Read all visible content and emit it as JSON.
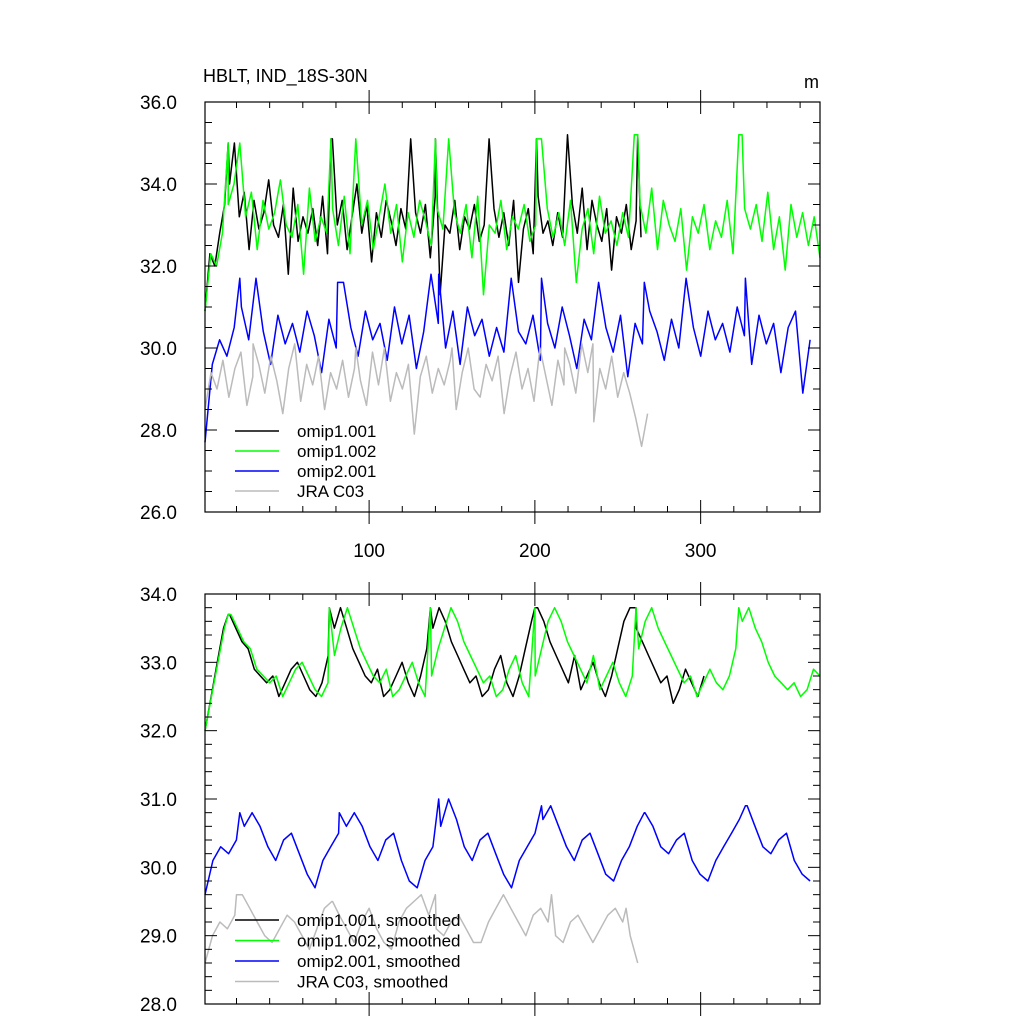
{
  "chart_data": [
    {
      "type": "line",
      "title": "HBLT, IND_18S-30N",
      "units": "m",
      "xlim": [
        1,
        372
      ],
      "ylim": [
        26,
        36
      ],
      "xticks": [
        100,
        200,
        300
      ],
      "xtick_labels": [
        "100",
        "200",
        "300"
      ],
      "yticks": [
        26,
        28,
        30,
        32,
        34,
        36
      ],
      "ytick_labels": [
        "26.0",
        "28.0",
        "30.0",
        "32.0",
        "34.0",
        "36.0"
      ],
      "grid": false,
      "legend_position": "bottom-left",
      "series": [
        {
          "name": "omip1.001",
          "color": "#000000",
          "x_range": [
            1,
            264
          ],
          "annual_peaks": [
            [
              15,
              35.0
            ],
            [
              77,
              35.1
            ],
            [
              140,
              35.1
            ],
            [
              201,
              35.1
            ],
            [
              262,
              35.2
            ]
          ],
          "values": [
            30.9,
            32.3,
            32.0,
            32.8,
            33.5,
            34.0,
            35.0,
            33.2,
            33.8,
            32.4,
            33.6,
            32.9,
            33.3,
            34.1,
            33.0,
            32.7,
            33.5,
            31.8,
            33.9,
            32.6,
            33.2,
            32.8,
            33.4,
            32.5,
            33.7,
            32.3,
            35.1,
            33.0,
            33.6,
            32.4,
            33.2,
            34.0,
            32.8,
            33.5,
            32.1,
            33.3,
            32.7,
            33.6,
            33.1,
            32.5,
            33.4,
            32.9,
            35.1,
            33.3,
            32.8,
            33.5,
            32.2,
            33.7,
            31.3,
            33.0,
            32.8,
            33.6,
            32.4,
            33.2,
            32.9,
            33.5,
            32.6,
            33.0,
            35.1,
            33.4,
            32.7,
            33.3,
            32.5,
            33.6,
            31.6,
            32.9,
            33.4,
            32.3,
            33.7,
            32.8,
            33.1,
            32.5,
            33.3,
            32.7,
            35.2,
            33.5,
            32.8,
            33.9,
            32.4,
            33.6,
            33.0,
            32.6,
            33.4,
            31.9,
            33.2,
            32.8,
            33.5,
            32.4,
            33.1,
            32.7
          ]
        },
        {
          "name": "omip1.002",
          "color": "#00ff00",
          "x_range": [
            1,
            372
          ],
          "annual_peaks": [
            [
              15,
              35.0
            ],
            [
              77,
              35.1
            ],
            [
              140,
              35.1
            ],
            [
              201,
              35.1
            ],
            [
              262,
              35.2
            ],
            [
              325,
              35.2
            ]
          ],
          "values": [
            30.9,
            32.3,
            32.0,
            32.8,
            33.5,
            34.0,
            35.0,
            33.2,
            33.8,
            32.4,
            33.6,
            32.9,
            33.3,
            34.1,
            33.0,
            32.7,
            33.5,
            31.8,
            33.9,
            32.6,
            33.2,
            32.8,
            33.4,
            32.5,
            33.7,
            32.3,
            35.1,
            33.0,
            33.6,
            32.4,
            33.2,
            34.0,
            32.8,
            33.5,
            32.1,
            33.3,
            32.7,
            33.6,
            33.1,
            32.5,
            33.4,
            32.9,
            35.1,
            33.3,
            32.8,
            33.5,
            32.2,
            33.7,
            31.3,
            33.0,
            32.8,
            33.6,
            32.4,
            33.2,
            32.9,
            33.5,
            32.6,
            33.0,
            35.1,
            33.4,
            32.7,
            33.3,
            32.5,
            33.6,
            31.6,
            32.9,
            33.4,
            32.3,
            33.7,
            32.8,
            33.1,
            32.5,
            33.3,
            32.7,
            35.2,
            33.5,
            32.8,
            33.9,
            32.4,
            33.6,
            33.0,
            32.6,
            33.4,
            31.9,
            33.2,
            32.8,
            33.5,
            32.4,
            33.1,
            32.7,
            33.6,
            32.3,
            35.2,
            33.4,
            32.9,
            33.5,
            32.6,
            33.8,
            32.4,
            33.2,
            31.9,
            33.5,
            32.7,
            33.3,
            32.5,
            33.2,
            32.2
          ]
        },
        {
          "name": "omip2.001",
          "color": "#0000ff",
          "x_range": [
            1,
            366
          ],
          "annual_peaks": [
            [
              22,
              31.7
            ],
            [
              81,
              31.6
            ],
            [
              142,
              31.8
            ],
            [
              204,
              31.7
            ],
            [
              266,
              31.6
            ],
            [
              327,
              31.7
            ]
          ],
          "values": [
            27.7,
            29.6,
            30.2,
            29.8,
            30.5,
            31.0,
            30.2,
            31.7,
            30.4,
            29.6,
            30.8,
            30.1,
            30.6,
            29.9,
            30.9,
            30.3,
            29.4,
            30.7,
            30.0,
            31.6,
            30.5,
            29.8,
            30.9,
            30.2,
            30.6,
            29.7,
            31.0,
            30.1,
            30.8,
            29.5,
            30.4,
            31.8,
            30.6,
            30.0,
            30.9,
            29.6,
            31.0,
            30.3,
            30.7,
            29.8,
            30.5,
            29.9,
            31.7,
            30.4,
            30.1,
            30.8,
            29.7,
            30.6,
            30.0,
            31.0,
            30.3,
            29.5,
            30.7,
            30.2,
            31.6,
            30.5,
            29.9,
            30.8,
            29.3,
            30.6,
            30.1,
            30.9,
            30.4,
            29.7,
            30.7,
            30.0,
            31.7,
            30.5,
            29.8,
            30.9,
            30.2,
            30.6,
            29.9,
            31.0,
            30.3,
            29.6,
            30.8,
            30.1,
            30.6,
            29.4,
            30.5,
            30.9,
            28.9,
            30.2
          ]
        },
        {
          "name": "JRA C03",
          "color": "#bbbbbb",
          "x_range": [
            1,
            268
          ],
          "annual_peaks": [
            [
              30,
              30.1
            ],
            [
              92,
              30.0
            ],
            [
              150,
              30.0
            ],
            [
              218,
              30.0
            ],
            [
              235,
              30.1
            ]
          ],
          "values": [
            28.5,
            29.4,
            29.0,
            29.7,
            28.8,
            29.5,
            29.9,
            28.6,
            29.3,
            29.6,
            28.9,
            29.8,
            29.2,
            28.4,
            29.5,
            30.1,
            28.7,
            29.6,
            29.1,
            29.8,
            28.5,
            29.4,
            29.0,
            29.7,
            28.8,
            29.5,
            29.2,
            28.6,
            29.9,
            29.1,
            30.0,
            28.7,
            29.4,
            29.0,
            29.6,
            27.9,
            29.3,
            29.8,
            28.9,
            29.5,
            29.1,
            29.7,
            28.5,
            29.4,
            30.0,
            29.0,
            28.8,
            29.6,
            29.2,
            29.8,
            28.4,
            29.3,
            29.9,
            29.0,
            29.5,
            28.7,
            30.0,
            29.3,
            28.6,
            29.7,
            29.1,
            29.6,
            28.9,
            30.1,
            29.4,
            28.2,
            29.5,
            29.0,
            29.8,
            28.8,
            29.4,
            28.9,
            28.3,
            27.6,
            28.4
          ]
        }
      ]
    },
    {
      "type": "line",
      "xlim": [
        1,
        372
      ],
      "ylim": [
        28,
        34
      ],
      "yticks": [
        28,
        29,
        30,
        31,
        32,
        33,
        34
      ],
      "ytick_labels": [
        "28.0",
        "29.0",
        "30.0",
        "31.0",
        "32.0",
        "33.0",
        "34.0"
      ],
      "grid": false,
      "legend_position": "bottom-left",
      "series": [
        {
          "name": "omip1.001, smoothed",
          "color": "#000000",
          "x_range": [
            1,
            302
          ],
          "annual_peaks": [
            [
              15,
              33.7
            ],
            [
              76,
              33.8
            ],
            [
              137,
              33.8
            ],
            [
              200,
              33.8
            ],
            [
              261,
              33.8
            ]
          ],
          "values": [
            32.0,
            32.5,
            33.0,
            33.5,
            33.7,
            33.5,
            33.3,
            33.2,
            32.9,
            32.8,
            32.7,
            32.8,
            32.5,
            32.7,
            32.9,
            33.0,
            32.8,
            32.6,
            32.5,
            32.7,
            33.1,
            33.5,
            33.8,
            33.5,
            33.2,
            33.0,
            32.8,
            32.7,
            32.9,
            32.5,
            32.6,
            32.8,
            33.0,
            32.7,
            32.5,
            32.8,
            33.2,
            33.5,
            33.8,
            33.6,
            33.3,
            33.1,
            32.9,
            32.7,
            32.8,
            32.5,
            32.6,
            32.9,
            33.1,
            32.7,
            32.5,
            32.8,
            33.2,
            33.6,
            33.8,
            33.6,
            33.3,
            33.1,
            32.9,
            32.7,
            33.1,
            32.6,
            32.8,
            33.0,
            32.7,
            32.5,
            32.8,
            33.2,
            33.6,
            33.8,
            33.5,
            33.3,
            33.1,
            32.9,
            32.7,
            32.8,
            32.4,
            32.6,
            32.9,
            32.7,
            32.5,
            32.8
          ]
        },
        {
          "name": "omip1.002, smoothed",
          "color": "#00ff00",
          "x_range": [
            1,
            372
          ],
          "annual_peaks": [
            [
              15,
              33.7
            ],
            [
              76,
              33.8
            ],
            [
              137,
              33.8
            ],
            [
              200,
              33.8
            ],
            [
              261,
              33.8
            ],
            [
              323,
              33.8
            ]
          ],
          "values": [
            32.0,
            32.5,
            33.0,
            33.5,
            33.7,
            33.5,
            33.3,
            33.2,
            32.9,
            32.8,
            32.7,
            32.8,
            32.5,
            32.7,
            32.9,
            33.0,
            32.8,
            32.6,
            32.5,
            32.7,
            33.1,
            33.5,
            33.8,
            33.5,
            33.2,
            33.0,
            32.8,
            32.7,
            32.9,
            32.5,
            32.6,
            32.8,
            33.0,
            32.7,
            32.5,
            32.8,
            33.2,
            33.5,
            33.8,
            33.6,
            33.3,
            33.1,
            32.9,
            32.7,
            32.8,
            32.5,
            32.6,
            32.9,
            33.1,
            32.7,
            32.5,
            32.8,
            33.2,
            33.6,
            33.8,
            33.6,
            33.3,
            33.1,
            32.9,
            32.7,
            33.1,
            32.6,
            32.8,
            33.0,
            32.7,
            32.5,
            32.8,
            33.2,
            33.6,
            33.8,
            33.5,
            33.3,
            33.1,
            32.9,
            32.7,
            32.8,
            32.5,
            32.7,
            32.9,
            32.7,
            32.6,
            32.8,
            33.2,
            33.6,
            33.8,
            33.5,
            33.3,
            33.0,
            32.8,
            32.7,
            32.6,
            32.7,
            32.5,
            32.6,
            32.9,
            32.8
          ]
        },
        {
          "name": "omip2.001, smoothed",
          "color": "#0000ff",
          "x_range": [
            1,
            366
          ],
          "annual_peaks": [
            [
              22,
              30.8
            ],
            [
              82,
              30.8
            ],
            [
              142,
              31.0
            ],
            [
              204,
              30.9
            ],
            [
              266,
              30.8
            ],
            [
              327,
              30.9
            ]
          ],
          "values": [
            29.6,
            30.1,
            30.3,
            30.2,
            30.4,
            30.6,
            30.8,
            30.6,
            30.3,
            30.1,
            30.4,
            30.5,
            30.2,
            29.9,
            29.7,
            30.1,
            30.3,
            30.5,
            30.6,
            30.8,
            30.6,
            30.3,
            30.1,
            30.4,
            30.5,
            30.1,
            29.8,
            29.7,
            30.1,
            30.3,
            30.6,
            31.0,
            30.7,
            30.3,
            30.1,
            30.4,
            30.5,
            30.2,
            29.9,
            29.7,
            30.1,
            30.3,
            30.5,
            30.7,
            30.9,
            30.6,
            30.3,
            30.1,
            30.4,
            30.5,
            30.2,
            29.9,
            29.8,
            30.1,
            30.3,
            30.6,
            30.8,
            30.6,
            30.3,
            30.2,
            30.4,
            30.5,
            30.1,
            29.9,
            29.8,
            30.1,
            30.3,
            30.5,
            30.7,
            30.9,
            30.6,
            30.3,
            30.2,
            30.4,
            30.5,
            30.1,
            29.9,
            29.8
          ]
        },
        {
          "name": "JRA C03, smoothed",
          "color": "#bbbbbb",
          "x_range": [
            1,
            262
          ],
          "annual_peaks": [
            [
              20,
              29.6
            ],
            [
              78,
              29.5
            ],
            [
              140,
              29.6
            ],
            [
              210,
              29.6
            ],
            [
              255,
              29.4
            ]
          ],
          "values": [
            28.6,
            29.0,
            29.2,
            29.1,
            29.3,
            29.6,
            29.4,
            29.2,
            29.0,
            28.9,
            29.1,
            29.3,
            29.2,
            29.0,
            28.8,
            29.1,
            29.4,
            29.5,
            29.3,
            29.1,
            28.9,
            29.2,
            29.4,
            29.1,
            28.9,
            28.8,
            29.2,
            29.4,
            29.5,
            29.6,
            29.3,
            29.1,
            29.0,
            29.2,
            29.3,
            29.1,
            28.9,
            28.9,
            29.2,
            29.4,
            29.6,
            29.4,
            29.2,
            29.0,
            29.3,
            29.4,
            29.2,
            29.0,
            28.9,
            29.2,
            29.3,
            29.1,
            28.9,
            29.1,
            29.3,
            29.4,
            29.2,
            29.0,
            28.6
          ]
        }
      ]
    }
  ]
}
